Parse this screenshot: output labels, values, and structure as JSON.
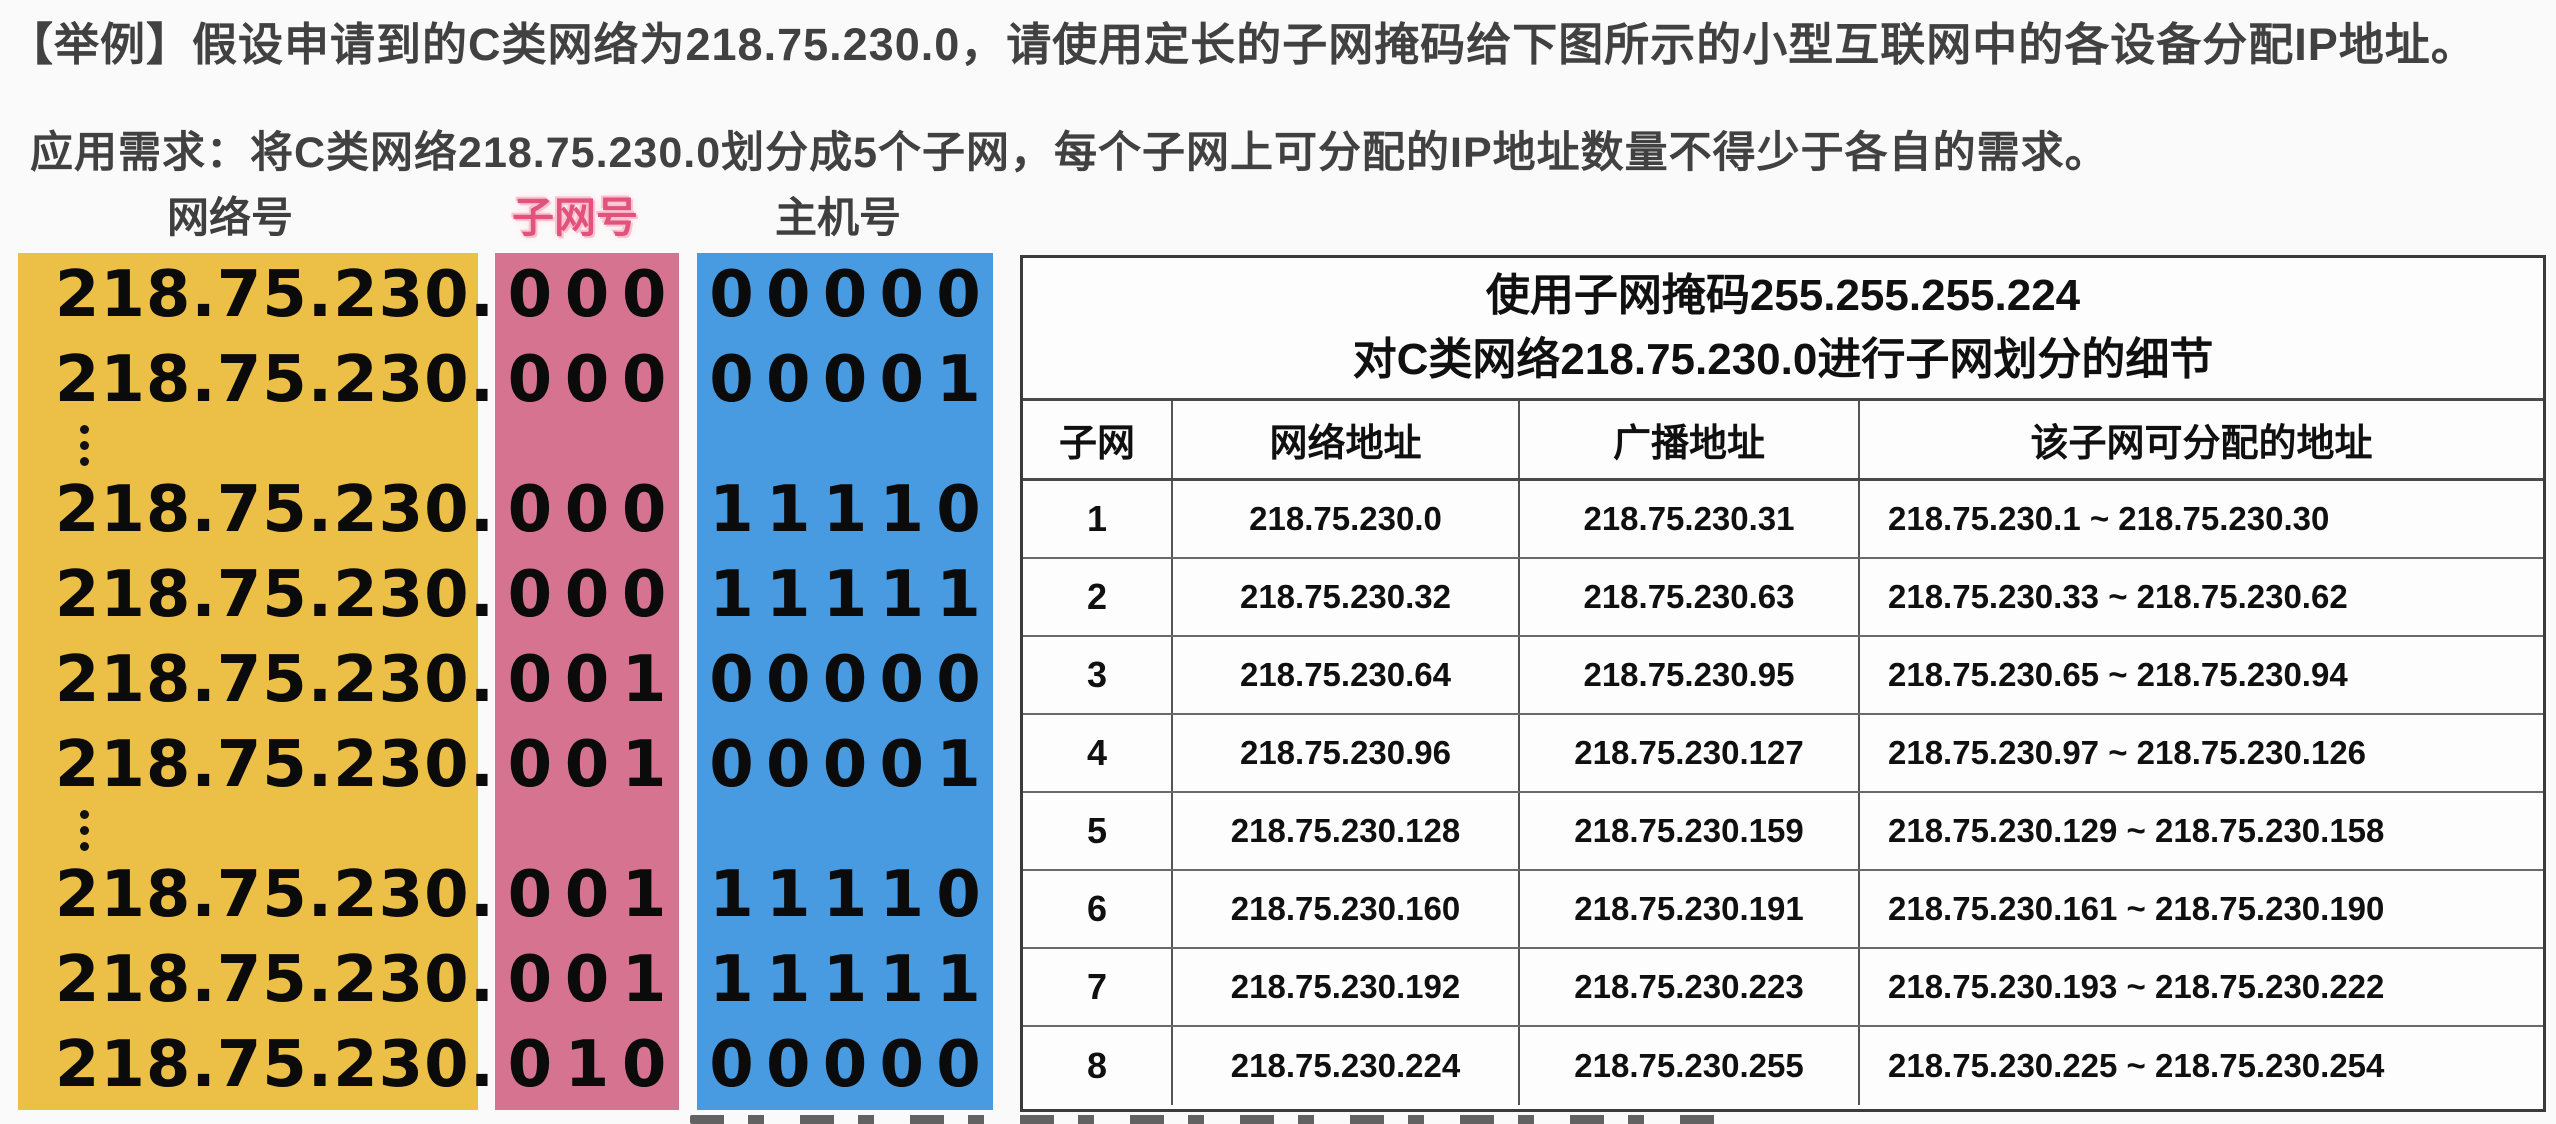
{
  "headline1": "【举例】假设申请到的C类网络为218.75.230.0，请使用定长的子网掩码给下图所示的小型互联网中的各设备分配IP地址。",
  "headline2": "应用需求：将C类网络218.75.230.0划分成5个子网，每个子网上可分配的IP地址数量不得少于各自的需求。",
  "column_labels": {
    "network": "网络号",
    "subnet": "子网号",
    "host": "主机号"
  },
  "colors": {
    "network_block": "#ecbf47",
    "subnet_block": "#d67390",
    "host_block": "#489be1",
    "subnet_label_text": "#e2527b",
    "heading_text": "#414141"
  },
  "binary": {
    "prefix": "218.75.230.",
    "rows": [
      {
        "subnet_bits": "000",
        "host_bits": "00000"
      },
      {
        "subnet_bits": "000",
        "host_bits": "00001"
      },
      {
        "subnet_bits": "000",
        "host_bits": "11110"
      },
      {
        "subnet_bits": "000",
        "host_bits": "11111"
      },
      {
        "subnet_bits": "001",
        "host_bits": "00000"
      },
      {
        "subnet_bits": "001",
        "host_bits": "00001"
      },
      {
        "subnet_bits": "001",
        "host_bits": "11110"
      },
      {
        "subnet_bits": "001",
        "host_bits": "11111"
      },
      {
        "subnet_bits": "010",
        "host_bits": "00000"
      }
    ]
  },
  "table": {
    "title_line1": "使用子网掩码255.255.255.224",
    "title_line2": "对C类网络218.75.230.0进行子网划分的细节",
    "headers": [
      "子网",
      "网络地址",
      "广播地址",
      "该子网可分配的地址"
    ],
    "rows": [
      {
        "id": "1",
        "network": "218.75.230.0",
        "broadcast": "218.75.230.31",
        "range": "218.75.230.1 ~ 218.75.230.30"
      },
      {
        "id": "2",
        "network": "218.75.230.32",
        "broadcast": "218.75.230.63",
        "range": "218.75.230.33 ~ 218.75.230.62"
      },
      {
        "id": "3",
        "network": "218.75.230.64",
        "broadcast": "218.75.230.95",
        "range": "218.75.230.65 ~ 218.75.230.94"
      },
      {
        "id": "4",
        "network": "218.75.230.96",
        "broadcast": "218.75.230.127",
        "range": "218.75.230.97 ~ 218.75.230.126"
      },
      {
        "id": "5",
        "network": "218.75.230.128",
        "broadcast": "218.75.230.159",
        "range": "218.75.230.129 ~ 218.75.230.158"
      },
      {
        "id": "6",
        "network": "218.75.230.160",
        "broadcast": "218.75.230.191",
        "range": "218.75.230.161 ~ 218.75.230.190"
      },
      {
        "id": "7",
        "network": "218.75.230.192",
        "broadcast": "218.75.230.223",
        "range": "218.75.230.193 ~ 218.75.230.222"
      },
      {
        "id": "8",
        "network": "218.75.230.224",
        "broadcast": "218.75.230.255",
        "range": "218.75.230.225 ~ 218.75.230.254"
      }
    ]
  }
}
